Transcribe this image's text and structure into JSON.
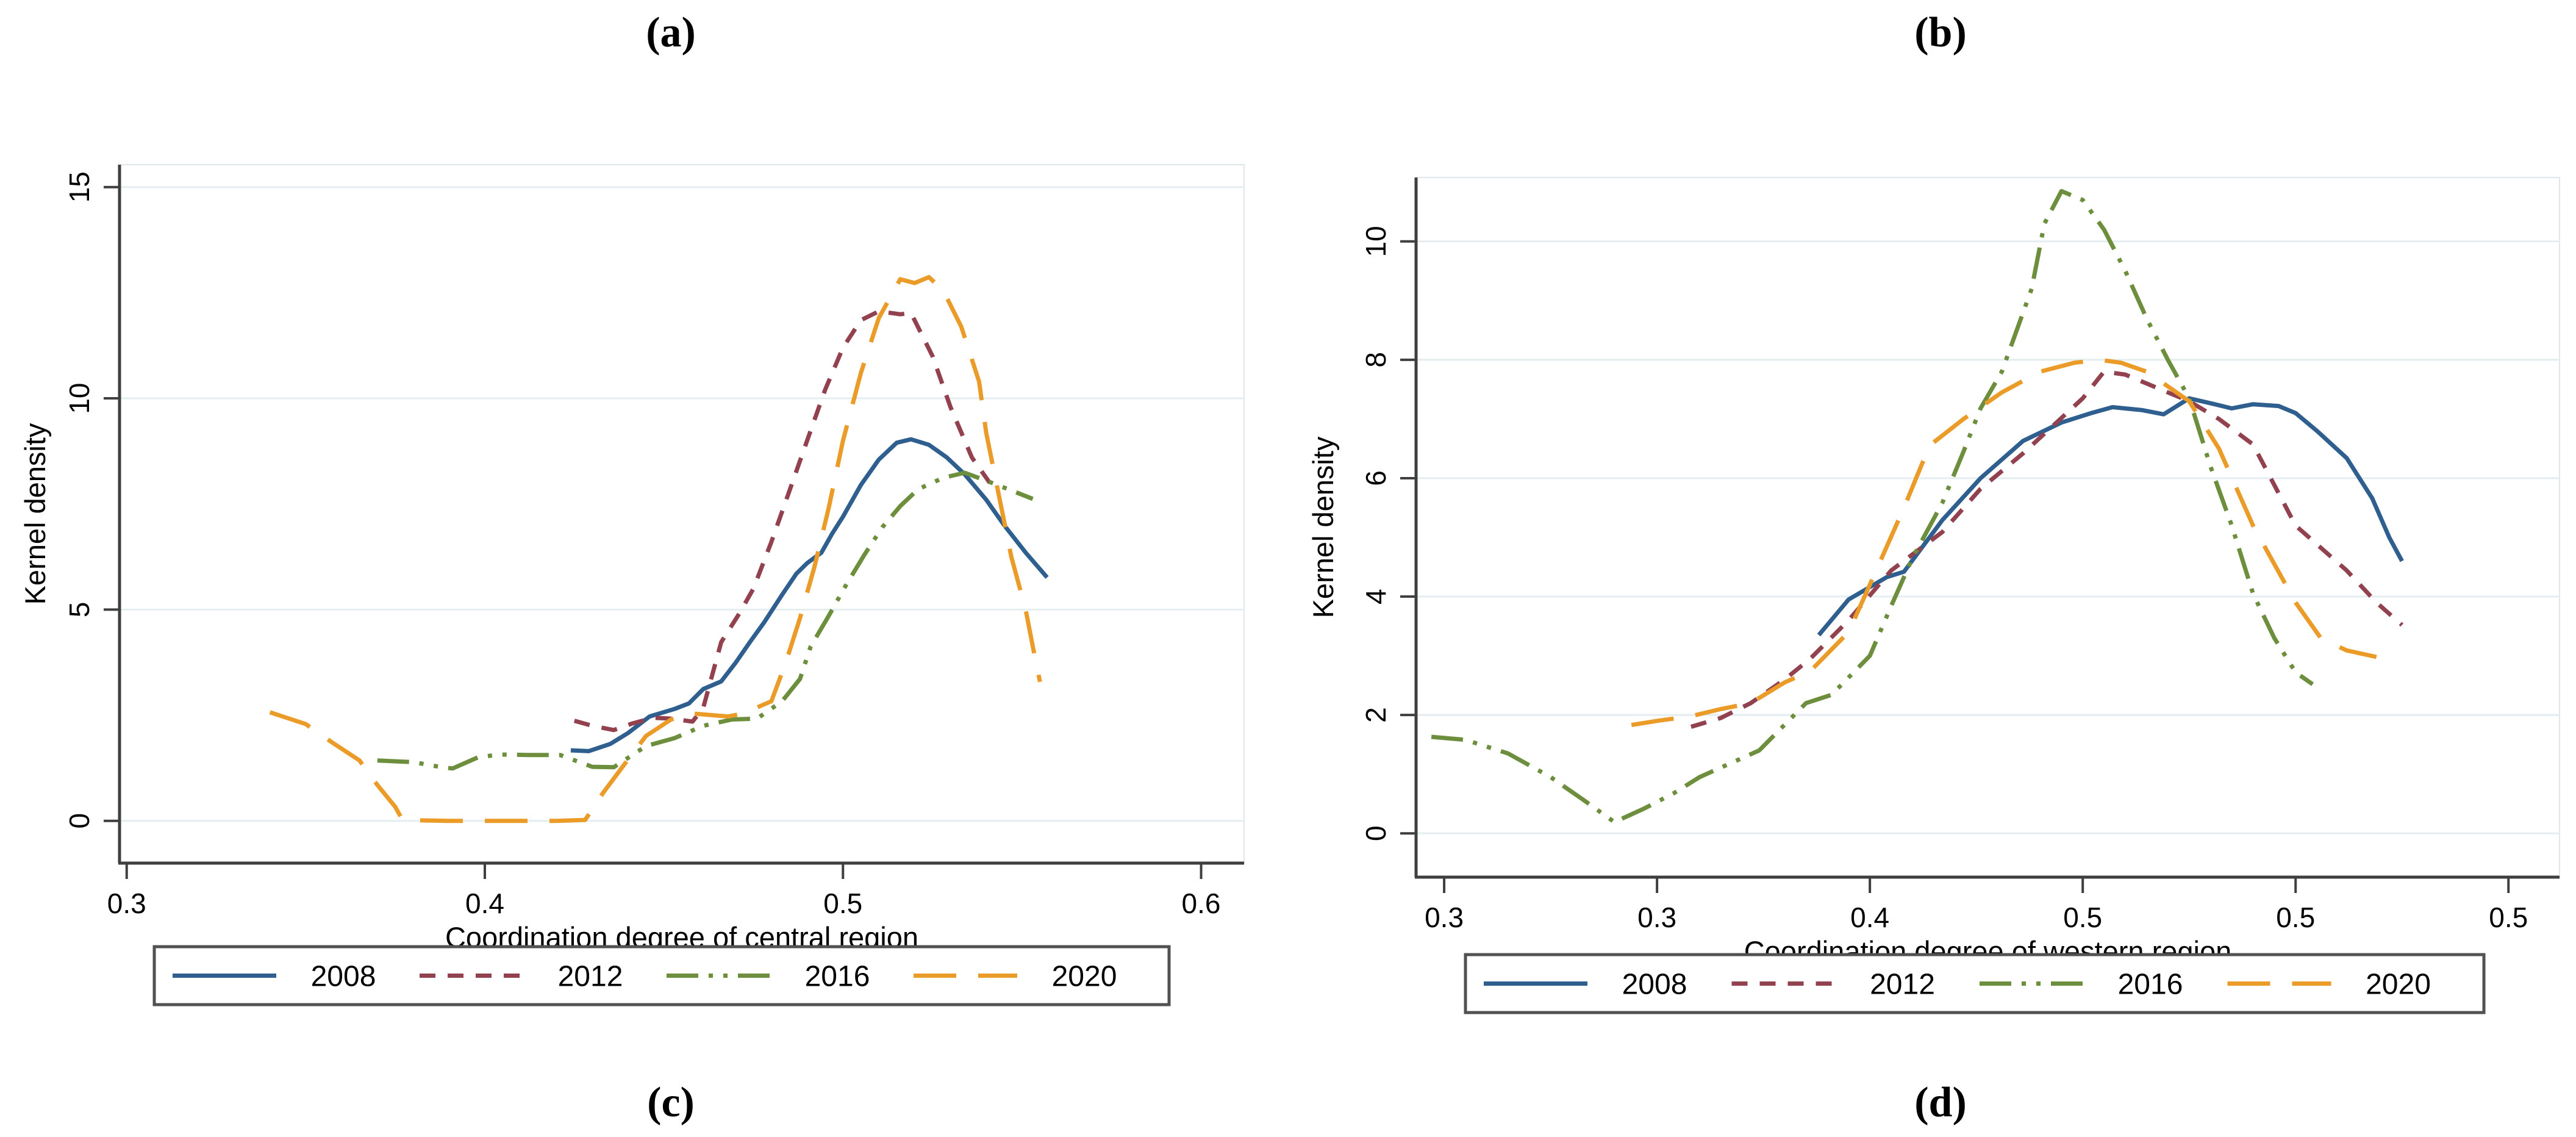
{
  "panel_labels": {
    "a": "(a)",
    "b": "(b)",
    "c": "(c)",
    "d": "(d)"
  },
  "colors": {
    "y2008": "#2f5f8f",
    "y2012": "#92414f",
    "y2016": "#6d8f3d",
    "y2020": "#eb9c28",
    "grid": "#e4eef1",
    "plot_border": "#dfe9ec",
    "axis": "#3f3f3f",
    "legend_border": "#515151",
    "text": "#000000"
  },
  "chart_data": [
    {
      "type": "line",
      "title": "",
      "xlabel": "Coordination degree of central region",
      "ylabel": "Kernel density",
      "legend_position": "bottom",
      "grid": true,
      "xlim": [
        0.298,
        0.612
      ],
      "ylim": [
        -1.0,
        15.53
      ],
      "x_ticks": [
        {
          "value": 0.3,
          "label": "0.3"
        },
        {
          "value": 0.4,
          "label": "0.4"
        },
        {
          "value": 0.5,
          "label": "0.5"
        },
        {
          "value": 0.6,
          "label": "0.6"
        }
      ],
      "y_ticks": [
        {
          "value": 0,
          "label": "0"
        },
        {
          "value": 5,
          "label": "5"
        },
        {
          "value": 10,
          "label": "10"
        },
        {
          "value": 15,
          "label": "15"
        }
      ],
      "series": [
        {
          "name": "2008",
          "color_key": "y2008",
          "dash": "solid",
          "points": [
            [
              0.424,
              1.67
            ],
            [
              0.429,
              1.65
            ],
            [
              0.435,
              1.82
            ],
            [
              0.44,
              2.08
            ],
            [
              0.446,
              2.47
            ],
            [
              0.453,
              2.65
            ],
            [
              0.457,
              2.78
            ],
            [
              0.461,
              3.12
            ],
            [
              0.466,
              3.3
            ],
            [
              0.47,
              3.74
            ],
            [
              0.474,
              4.23
            ],
            [
              0.478,
              4.7
            ],
            [
              0.483,
              5.35
            ],
            [
              0.487,
              5.85
            ],
            [
              0.49,
              6.1
            ],
            [
              0.494,
              6.35
            ],
            [
              0.497,
              6.8
            ],
            [
              0.5,
              7.2
            ],
            [
              0.505,
              7.95
            ],
            [
              0.51,
              8.55
            ],
            [
              0.515,
              8.95
            ],
            [
              0.519,
              9.03
            ],
            [
              0.524,
              8.9
            ],
            [
              0.529,
              8.6
            ],
            [
              0.534,
              8.2
            ],
            [
              0.54,
              7.6
            ],
            [
              0.545,
              7.0
            ],
            [
              0.551,
              6.35
            ],
            [
              0.557,
              5.76
            ]
          ]
        },
        {
          "name": "2012",
          "color_key": "y2012",
          "dash": "dash",
          "points": [
            [
              0.425,
              2.37
            ],
            [
              0.43,
              2.25
            ],
            [
              0.436,
              2.15
            ],
            [
              0.441,
              2.3
            ],
            [
              0.447,
              2.44
            ],
            [
              0.452,
              2.42
            ],
            [
              0.458,
              2.35
            ],
            [
              0.461,
              2.68
            ],
            [
              0.466,
              4.23
            ],
            [
              0.471,
              4.9
            ],
            [
              0.475,
              5.5
            ],
            [
              0.48,
              6.6
            ],
            [
              0.485,
              7.8
            ],
            [
              0.49,
              9.0
            ],
            [
              0.495,
              10.2
            ],
            [
              0.5,
              11.2
            ],
            [
              0.505,
              11.85
            ],
            [
              0.51,
              12.06
            ],
            [
              0.516,
              11.99
            ],
            [
              0.519,
              12.02
            ],
            [
              0.525,
              11.0
            ],
            [
              0.53,
              9.8
            ],
            [
              0.536,
              8.6
            ],
            [
              0.541,
              8.0
            ]
          ]
        },
        {
          "name": "2016",
          "color_key": "y2016",
          "dash": "dash-dot-dot",
          "points": [
            [
              0.37,
              1.43
            ],
            [
              0.38,
              1.39
            ],
            [
              0.388,
              1.27
            ],
            [
              0.391,
              1.24
            ],
            [
              0.398,
              1.5
            ],
            [
              0.404,
              1.57
            ],
            [
              0.412,
              1.56
            ],
            [
              0.421,
              1.56
            ],
            [
              0.43,
              1.28
            ],
            [
              0.436,
              1.27
            ],
            [
              0.445,
              1.77
            ],
            [
              0.453,
              1.96
            ],
            [
              0.461,
              2.25
            ],
            [
              0.469,
              2.4
            ],
            [
              0.476,
              2.42
            ],
            [
              0.483,
              2.83
            ],
            [
              0.488,
              3.36
            ],
            [
              0.491,
              4.13
            ],
            [
              0.496,
              4.85
            ],
            [
              0.501,
              5.6
            ],
            [
              0.506,
              6.3
            ],
            [
              0.511,
              6.95
            ],
            [
              0.516,
              7.45
            ],
            [
              0.521,
              7.85
            ],
            [
              0.528,
              8.12
            ],
            [
              0.534,
              8.24
            ],
            [
              0.54,
              8.05
            ],
            [
              0.544,
              7.92
            ],
            [
              0.553,
              7.62
            ]
          ]
        },
        {
          "name": "2020",
          "color_key": "y2020",
          "dash": "long-dash",
          "points": [
            [
              0.34,
              2.57
            ],
            [
              0.35,
              2.29
            ],
            [
              0.358,
              1.82
            ],
            [
              0.365,
              1.43
            ],
            [
              0.37,
              0.85
            ],
            [
              0.375,
              0.33
            ],
            [
              0.377,
              0.02
            ],
            [
              0.39,
              0.0
            ],
            [
              0.405,
              0.0
            ],
            [
              0.42,
              0.0
            ],
            [
              0.428,
              0.02
            ],
            [
              0.433,
              0.66
            ],
            [
              0.439,
              1.34
            ],
            [
              0.445,
              2.01
            ],
            [
              0.452,
              2.4
            ],
            [
              0.458,
              2.54
            ],
            [
              0.468,
              2.47
            ],
            [
              0.472,
              2.54
            ],
            [
              0.48,
              2.83
            ],
            [
              0.484,
              3.74
            ],
            [
              0.488,
              4.8
            ],
            [
              0.492,
              6.0
            ],
            [
              0.496,
              7.4
            ],
            [
              0.5,
              9.0
            ],
            [
              0.505,
              10.6
            ],
            [
              0.51,
              11.9
            ],
            [
              0.516,
              12.82
            ],
            [
              0.52,
              12.73
            ],
            [
              0.524,
              12.87
            ],
            [
              0.528,
              12.55
            ],
            [
              0.533,
              11.7
            ],
            [
              0.538,
              10.4
            ],
            [
              0.54,
              9.18
            ],
            [
              0.547,
              6.25
            ],
            [
              0.551,
              5.0
            ],
            [
              0.553,
              4.13
            ],
            [
              0.555,
              3.29
            ]
          ]
        }
      ]
    },
    {
      "type": "line",
      "title": "",
      "xlabel": "Coordination degree of western region",
      "ylabel": "Kernel density",
      "legend_position": "bottom",
      "grid": true,
      "xlim": [
        0.2934,
        0.562
      ],
      "ylim": [
        -0.74,
        11.08
      ],
      "x_ticks": [
        {
          "value": 0.3,
          "label": "0.3"
        },
        {
          "value": 0.35,
          "label": "0.3"
        },
        {
          "value": 0.4,
          "label": "0.4"
        },
        {
          "value": 0.45,
          "label": "0.5"
        },
        {
          "value": 0.5,
          "label": "0.5"
        },
        {
          "value": 0.55,
          "label": "0.5"
        }
      ],
      "y_ticks": [
        {
          "value": 0,
          "label": "0"
        },
        {
          "value": 2,
          "label": "2"
        },
        {
          "value": 4,
          "label": "4"
        },
        {
          "value": 6,
          "label": "6"
        },
        {
          "value": 8,
          "label": "8"
        },
        {
          "value": 10,
          "label": "10"
        }
      ],
      "series": [
        {
          "name": "2008",
          "color_key": "y2008",
          "dash": "solid",
          "points": [
            [
              0.388,
              3.35
            ],
            [
              0.395,
              3.95
            ],
            [
              0.404,
              4.33
            ],
            [
              0.408,
              4.42
            ],
            [
              0.417,
              5.29
            ],
            [
              0.426,
              6.0
            ],
            [
              0.436,
              6.63
            ],
            [
              0.445,
              6.94
            ],
            [
              0.452,
              7.1
            ],
            [
              0.457,
              7.2
            ],
            [
              0.464,
              7.15
            ],
            [
              0.469,
              7.08
            ],
            [
              0.475,
              7.35
            ],
            [
              0.481,
              7.25
            ],
            [
              0.485,
              7.18
            ],
            [
              0.49,
              7.25
            ],
            [
              0.496,
              7.22
            ],
            [
              0.5,
              7.1
            ],
            [
              0.505,
              6.8
            ],
            [
              0.512,
              6.34
            ],
            [
              0.518,
              5.66
            ],
            [
              0.522,
              5.0
            ],
            [
              0.525,
              4.6
            ]
          ]
        },
        {
          "name": "2012",
          "color_key": "y2012",
          "dash": "dash",
          "points": [
            [
              0.358,
              1.8
            ],
            [
              0.365,
              1.95
            ],
            [
              0.372,
              2.2
            ],
            [
              0.38,
              2.6
            ],
            [
              0.386,
              2.95
            ],
            [
              0.395,
              3.6
            ],
            [
              0.405,
              4.44
            ],
            [
              0.417,
              5.09
            ],
            [
              0.426,
              5.82
            ],
            [
              0.436,
              6.42
            ],
            [
              0.45,
              7.35
            ],
            [
              0.455,
              7.8
            ],
            [
              0.46,
              7.75
            ],
            [
              0.465,
              7.6
            ],
            [
              0.47,
              7.45
            ],
            [
              0.475,
              7.3
            ],
            [
              0.482,
              7.0
            ],
            [
              0.49,
              6.57
            ],
            [
              0.5,
              5.2
            ],
            [
              0.512,
              4.44
            ],
            [
              0.519,
              3.9
            ],
            [
              0.525,
              3.52
            ]
          ]
        },
        {
          "name": "2016",
          "color_key": "y2016",
          "dash": "dash-dot-dot",
          "points": [
            [
              0.297,
              1.63
            ],
            [
              0.305,
              1.58
            ],
            [
              0.315,
              1.35
            ],
            [
              0.325,
              0.95
            ],
            [
              0.333,
              0.55
            ],
            [
              0.34,
              0.19
            ],
            [
              0.347,
              0.42
            ],
            [
              0.354,
              0.68
            ],
            [
              0.36,
              0.95
            ],
            [
              0.374,
              1.4
            ],
            [
              0.385,
              2.2
            ],
            [
              0.391,
              2.34
            ],
            [
              0.4,
              3.0
            ],
            [
              0.405,
              3.84
            ],
            [
              0.41,
              4.65
            ],
            [
              0.417,
              5.58
            ],
            [
              0.422,
              6.45
            ],
            [
              0.426,
              7.18
            ],
            [
              0.431,
              7.8
            ],
            [
              0.438,
              9.2
            ],
            [
              0.441,
              10.3
            ],
            [
              0.445,
              10.85
            ],
            [
              0.45,
              10.7
            ],
            [
              0.455,
              10.2
            ],
            [
              0.46,
              9.5
            ],
            [
              0.465,
              8.7
            ],
            [
              0.47,
              8.0
            ],
            [
              0.475,
              7.35
            ],
            [
              0.48,
              6.2
            ],
            [
              0.485,
              5.2
            ],
            [
              0.49,
              4.05
            ],
            [
              0.495,
              3.3
            ],
            [
              0.5,
              2.72
            ],
            [
              0.504,
              2.52
            ]
          ]
        },
        {
          "name": "2020",
          "color_key": "y2020",
          "dash": "long-dash",
          "points": [
            [
              0.344,
              1.83
            ],
            [
              0.35,
              1.9
            ],
            [
              0.358,
              1.98
            ],
            [
              0.365,
              2.1
            ],
            [
              0.372,
              2.2
            ],
            [
              0.38,
              2.55
            ],
            [
              0.386,
              2.74
            ],
            [
              0.395,
              3.4
            ],
            [
              0.4,
              4.2
            ],
            [
              0.408,
              5.5
            ],
            [
              0.414,
              6.55
            ],
            [
              0.422,
              7.0
            ],
            [
              0.431,
              7.45
            ],
            [
              0.44,
              7.8
            ],
            [
              0.448,
              7.95
            ],
            [
              0.454,
              8.0
            ],
            [
              0.459,
              7.95
            ],
            [
              0.465,
              7.8
            ],
            [
              0.47,
              7.55
            ],
            [
              0.475,
              7.3
            ],
            [
              0.482,
              6.5
            ],
            [
              0.49,
              5.2
            ],
            [
              0.5,
              3.9
            ],
            [
              0.506,
              3.29
            ],
            [
              0.512,
              3.09
            ],
            [
              0.519,
              2.98
            ]
          ]
        }
      ]
    }
  ]
}
